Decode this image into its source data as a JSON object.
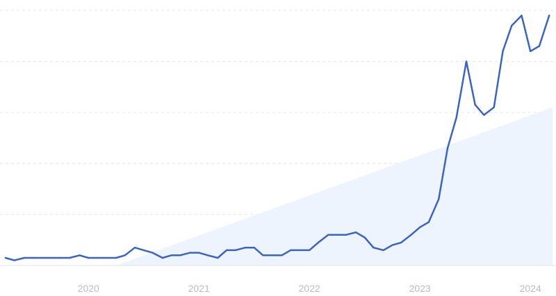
{
  "chart_data": {
    "type": "line",
    "title": "",
    "xlabel": "",
    "ylabel": "",
    "grid": true,
    "legend": "none",
    "xlim": [
      2019.25,
      2024.2
    ],
    "ylim": [
      0,
      100
    ],
    "x_ticks": [
      {
        "value": 2020,
        "label": "2020"
      },
      {
        "value": 2021,
        "label": "2021"
      },
      {
        "value": 2022,
        "label": "2022"
      },
      {
        "value": 2023,
        "label": "2023"
      },
      {
        "value": 2024,
        "label": "2024"
      }
    ],
    "y_gridlines": [
      20,
      40,
      60,
      80,
      100
    ],
    "colors": {
      "line": "#3a63c6",
      "trend_fill": "#eef4fd",
      "grid": "#e3e6ea",
      "tick_text": "#b7bcc6"
    },
    "series": [
      {
        "x": [
          2019.25,
          2019.33,
          2019.42,
          2019.5,
          2019.58,
          2019.67,
          2019.75,
          2019.83,
          2019.92,
          2020.0,
          2020.08,
          2020.17,
          2020.25,
          2020.33,
          2020.42,
          2020.5,
          2020.58,
          2020.67,
          2020.75,
          2020.83,
          2020.92,
          2021.0,
          2021.08,
          2021.17,
          2021.25,
          2021.33,
          2021.42,
          2021.5,
          2021.58,
          2021.67,
          2021.75,
          2021.83,
          2021.92,
          2022.0,
          2022.08,
          2022.17,
          2022.25,
          2022.33,
          2022.42,
          2022.5,
          2022.58,
          2022.67,
          2022.75,
          2022.83,
          2022.92,
          2023.0,
          2023.08,
          2023.17,
          2023.25,
          2023.33,
          2023.42,
          2023.5,
          2023.58,
          2023.67,
          2023.75,
          2023.83,
          2023.92,
          2024.0,
          2024.08,
          2024.17
        ],
        "values": [
          3,
          2,
          3,
          3,
          3,
          3,
          3,
          3,
          4,
          3,
          3,
          3,
          3,
          4,
          7,
          6,
          5,
          3,
          4,
          4,
          5,
          5,
          4,
          3,
          6,
          6,
          7,
          7,
          4,
          4,
          4,
          6,
          6,
          6,
          9,
          12,
          12,
          12,
          13,
          11,
          7,
          6,
          8,
          9,
          12,
          15,
          17,
          26,
          46,
          58,
          80,
          63,
          59,
          62,
          84,
          94,
          98,
          84,
          86,
          98
        ]
      }
    ],
    "trend_area": {
      "x": [
        2020.25,
        2024.2
      ],
      "values": [
        0,
        62
      ]
    }
  }
}
